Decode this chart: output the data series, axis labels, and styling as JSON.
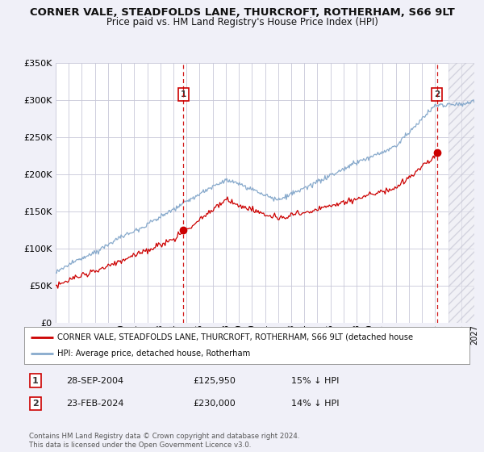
{
  "title": "CORNER VALE, STEADFOLDS LANE, THURCROFT, ROTHERHAM, S66 9LT",
  "subtitle": "Price paid vs. HM Land Registry's House Price Index (HPI)",
  "title_fontsize": 9.5,
  "subtitle_fontsize": 8.5,
  "bg_color": "#f0f0f8",
  "plot_bg_color": "#ffffff",
  "grid_color": "#c8c8d8",
  "red_line_color": "#cc0000",
  "blue_line_color": "#88aacc",
  "sale1_date_num": 2004.75,
  "sale1_price": 125950,
  "sale2_date_num": 2024.15,
  "sale2_price": 230000,
  "xmin": 1995,
  "xmax": 2027,
  "ymin": 0,
  "ymax": 350000,
  "yticks": [
    0,
    50000,
    100000,
    150000,
    200000,
    250000,
    300000,
    350000
  ],
  "ytick_labels": [
    "£0",
    "£50K",
    "£100K",
    "£150K",
    "£200K",
    "£250K",
    "£300K",
    "£350K"
  ],
  "legend_label_red": "CORNER VALE, STEADFOLDS LANE, THURCROFT, ROTHERHAM, S66 9LT (detached house",
  "legend_label_blue": "HPI: Average price, detached house, Rotherham",
  "table_row1": [
    "1",
    "28-SEP-2004",
    "£125,950",
    "15% ↓ HPI"
  ],
  "table_row2": [
    "2",
    "23-FEB-2024",
    "£230,000",
    "14% ↓ HPI"
  ],
  "footnote1": "Contains HM Land Registry data © Crown copyright and database right 2024.",
  "footnote2": "This data is licensed under the Open Government Licence v3.0."
}
